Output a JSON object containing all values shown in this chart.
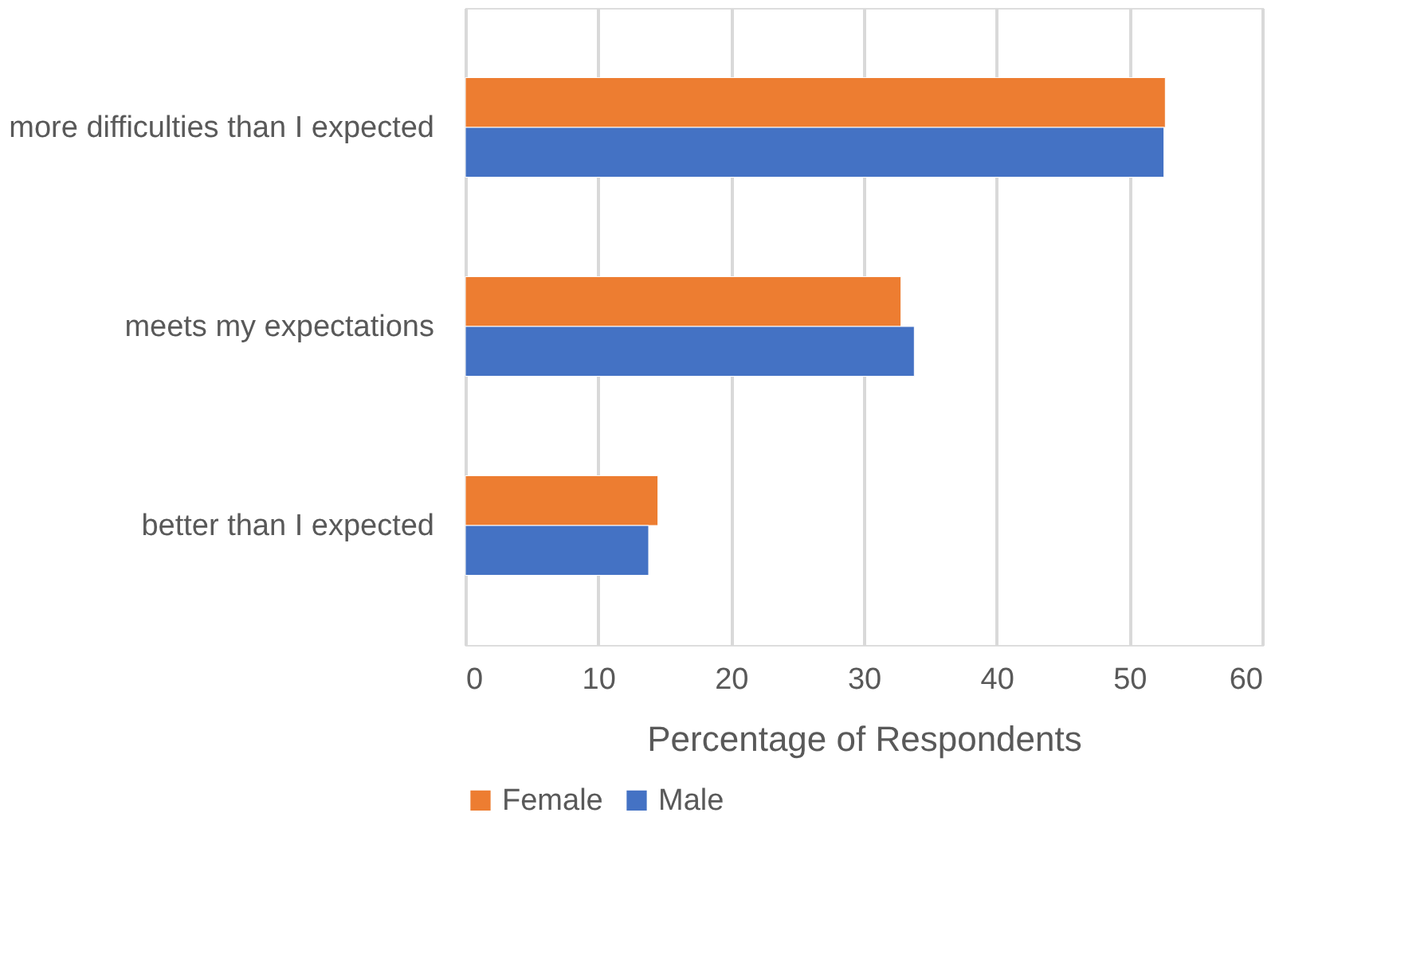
{
  "chart_data": {
    "type": "bar",
    "orientation": "horizontal",
    "xlabel": "Percentage of Respondents",
    "categories": [
      "more difficulties than I expected",
      "meets my expectations",
      "better than I expected"
    ],
    "series": [
      {
        "name": "Female",
        "color": "#ed7d31",
        "values": [
          52.7,
          32.8,
          14.5
        ]
      },
      {
        "name": "Male",
        "color": "#4472c4",
        "values": [
          52.6,
          33.8,
          13.8
        ]
      }
    ],
    "xlim": [
      0,
      60
    ],
    "xticks": [
      0,
      10,
      20,
      30,
      40,
      50,
      60
    ],
    "grid": "x",
    "legend": "bottom"
  }
}
